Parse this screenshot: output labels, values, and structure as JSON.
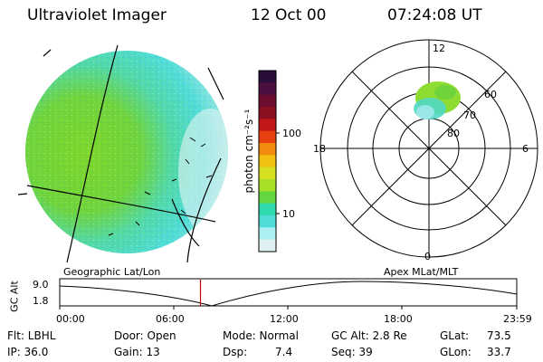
{
  "header": {
    "instrument": "Ultraviolet Imager",
    "date": "12 Oct 00",
    "time": "07:24:08 UT"
  },
  "colorbar": {
    "unit_label": "photon cm⁻²s⁻¹",
    "tick_labels": [
      "100",
      "10"
    ],
    "colors": [
      "#2a0d3a",
      "#4a1040",
      "#6a0d2e",
      "#8a0f20",
      "#c01818",
      "#e84010",
      "#f08a10",
      "#f2c010",
      "#d6e020",
      "#a8e028",
      "#66d640",
      "#30d8b0",
      "#4fdcd8",
      "#aaf0f0",
      "#e0f0f0"
    ]
  },
  "polar_plot": {
    "labels": [
      "12",
      "18",
      "6",
      "0",
      "60",
      "70",
      "80"
    ]
  },
  "timeline": {
    "left_caption": "Geographic Lat/Lon",
    "right_caption": "Apex MLat/MLT",
    "yaxis_label": "GC Alt",
    "y_ticks": [
      "9.0",
      "1.8"
    ],
    "x_ticks": [
      "00:00",
      "06:00",
      "12:00",
      "18:00",
      "23:59"
    ],
    "marker_time_fraction": 0.308
  },
  "status": {
    "flt": "Flt: LBHL",
    "ip": "IP: 36.0",
    "door": "Door: Open",
    "gain": "Gain: 13",
    "mode": "Mode: Normal",
    "dsp_label": "Dsp:",
    "dsp_value": "7.4",
    "gcalt": "GC Alt: 2.8 Re",
    "seq": "Seq: 39",
    "glat_label": "GLat:",
    "glat_value": "73.5",
    "glon_label": "GLon:",
    "glon_value": "33.7"
  }
}
